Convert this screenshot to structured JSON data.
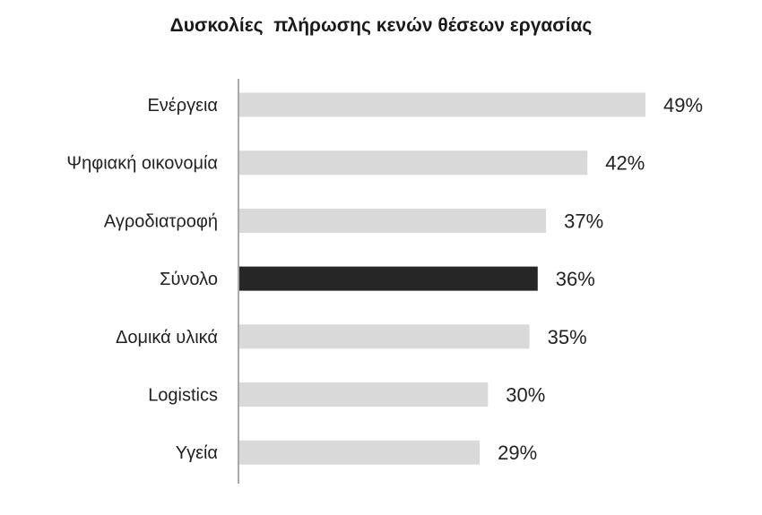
{
  "chart_data": {
    "type": "bar",
    "orientation": "horizontal",
    "title": "Δυσκολίες  πλήρωσης κενών θέσεων εργασίας",
    "categories": [
      "Ενέργεια",
      "Ψηφιακή οικονομία",
      "Αγροδιατροφή",
      "Σύνολο",
      "Δομικά υλικά",
      "Logistics",
      "Υγεία"
    ],
    "values": [
      49,
      42,
      37,
      36,
      35,
      30,
      29
    ],
    "value_labels": [
      "49%",
      "42%",
      "37%",
      "36%",
      "35%",
      "30%",
      "29%"
    ],
    "unit": "%",
    "xlim": [
      0,
      49
    ],
    "highlight_category": "Σύνολο",
    "colors": {
      "bar": "#d9d9d9",
      "highlight": "#262626",
      "axis": "#555555"
    },
    "grid": false,
    "legend": "none"
  }
}
